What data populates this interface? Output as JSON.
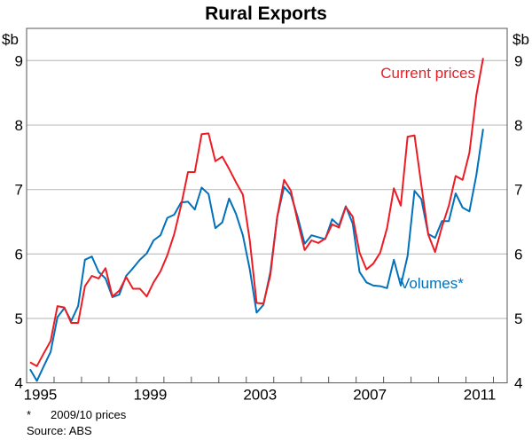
{
  "chart_data": {
    "type": "line",
    "title": "Rural Exports",
    "ylabel_left": "$b",
    "ylabel_right": "$b",
    "ylim": [
      4,
      9.5
    ],
    "yticks": [
      4,
      5,
      6,
      7,
      8,
      9
    ],
    "xlim": [
      1995,
      2012.5
    ],
    "xticks": [
      "1995",
      "1999",
      "2003",
      "2007",
      "2011"
    ],
    "xtick_years": [
      1995,
      1999,
      2003,
      2007,
      2011
    ],
    "x_start": 1995.125,
    "x_step": 0.25,
    "grid": true,
    "series": [
      {
        "name": "Current prices",
        "color": "#ed1c24",
        "values": [
          4.32,
          4.26,
          4.46,
          4.65,
          5.19,
          5.17,
          4.93,
          4.93,
          5.5,
          5.66,
          5.62,
          5.78,
          5.34,
          5.43,
          5.64,
          5.46,
          5.46,
          5.34,
          5.56,
          5.73,
          5.98,
          6.31,
          6.75,
          7.27,
          7.27,
          7.86,
          7.87,
          7.44,
          7.51,
          7.32,
          7.11,
          6.92,
          6.22,
          5.24,
          5.23,
          5.67,
          6.57,
          7.15,
          6.98,
          6.5,
          6.06,
          6.21,
          6.17,
          6.24,
          6.46,
          6.41,
          6.73,
          6.58,
          6.02,
          5.76,
          5.85,
          6.02,
          6.4,
          7.02,
          6.75,
          7.82,
          7.84,
          7.07,
          6.3,
          6.03,
          6.42,
          6.75,
          7.21,
          7.15,
          7.57,
          8.46,
          9.04
        ]
      },
      {
        "name": "Volumes*",
        "color": "#0072bc",
        "values": [
          4.21,
          4.03,
          4.26,
          4.48,
          5.02,
          5.16,
          4.96,
          5.19,
          5.91,
          5.96,
          5.72,
          5.62,
          5.33,
          5.37,
          5.66,
          5.78,
          5.91,
          6.01,
          6.21,
          6.29,
          6.56,
          6.61,
          6.8,
          6.81,
          6.69,
          7.03,
          6.93,
          6.4,
          6.49,
          6.86,
          6.62,
          6.29,
          5.77,
          5.09,
          5.21,
          5.72,
          6.57,
          7.04,
          6.92,
          6.57,
          6.16,
          6.29,
          6.26,
          6.23,
          6.54,
          6.44,
          6.74,
          6.47,
          5.72,
          5.56,
          5.51,
          5.5,
          5.47,
          5.91,
          5.51,
          5.97,
          6.98,
          6.85,
          6.31,
          6.25,
          6.51,
          6.51,
          6.94,
          6.72,
          6.66,
          7.22,
          7.94
        ]
      }
    ],
    "footnote": "*",
    "footnote_text": "2009/10 prices",
    "source": "Source: ABS"
  }
}
